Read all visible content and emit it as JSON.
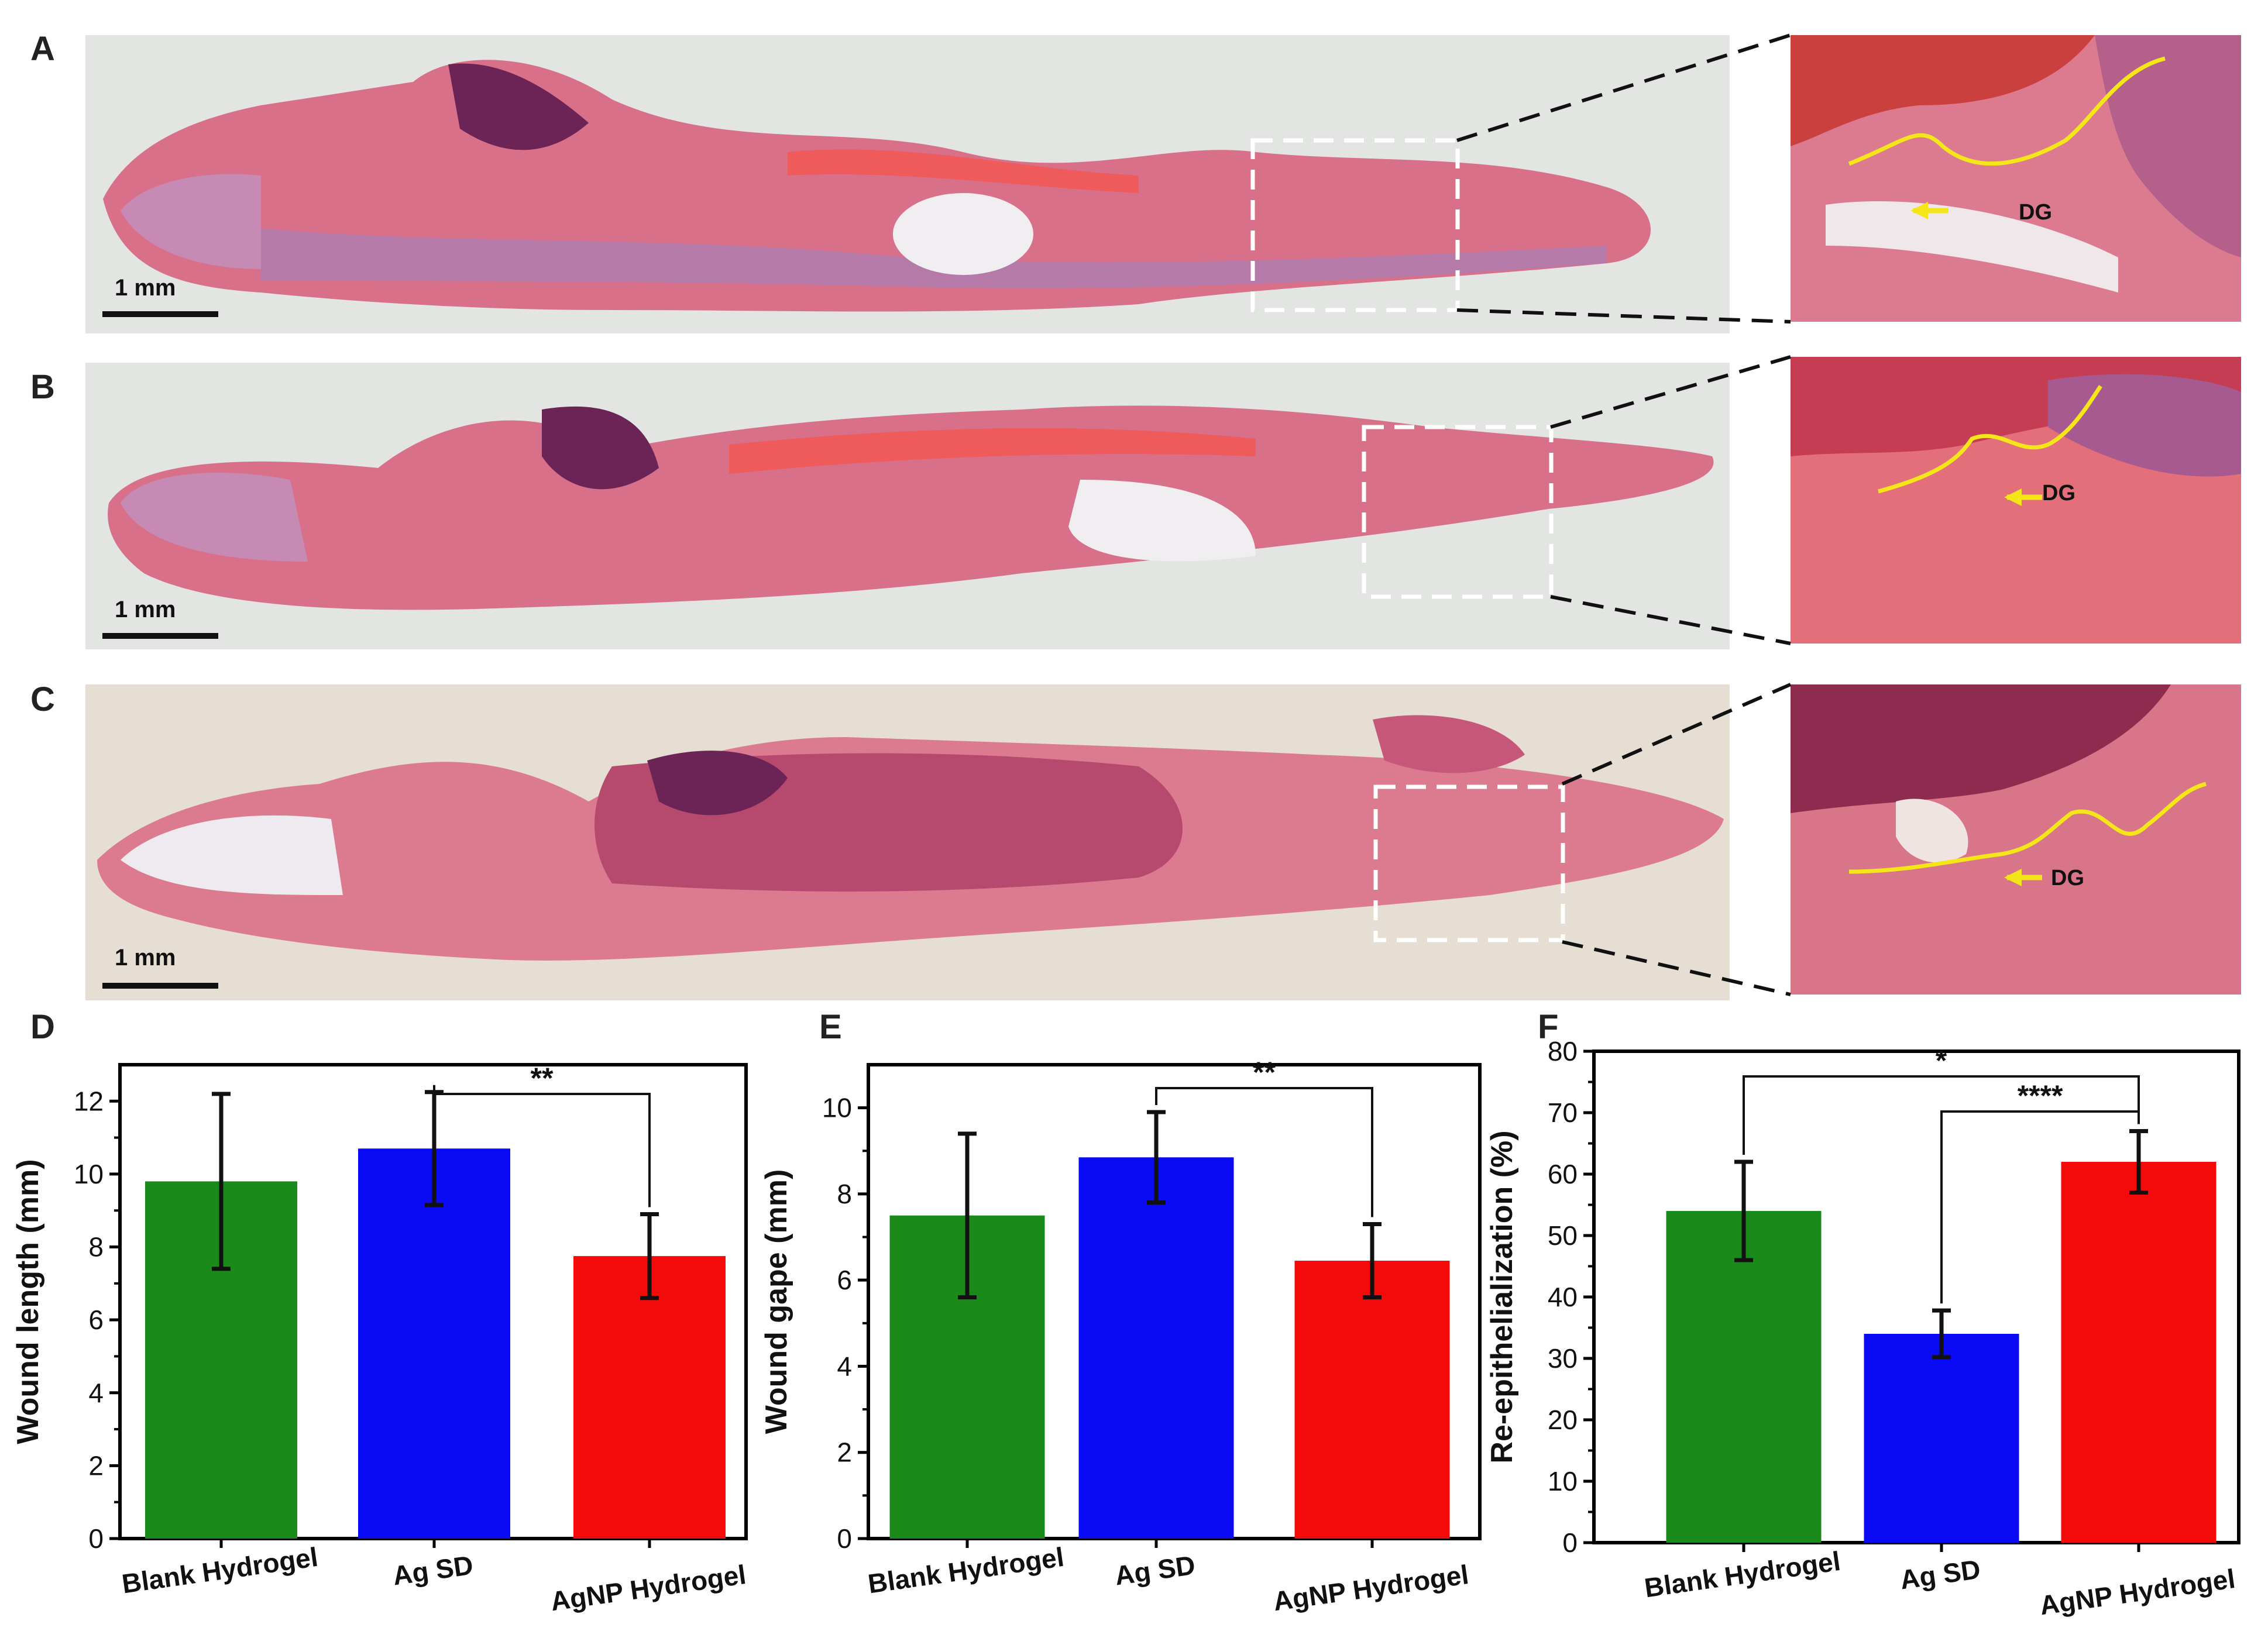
{
  "micrographs": [
    {
      "letter": "A",
      "scale_label": "1 mm",
      "annotation": "DG"
    },
    {
      "letter": "B",
      "scale_label": "1 mm",
      "annotation": "DG"
    },
    {
      "letter": "C",
      "scale_label": "1 mm",
      "annotation": "DG"
    }
  ],
  "colors": {
    "green": "#1a8a1a",
    "blue": "#0a0af5",
    "red": "#f50a0a",
    "tissue_pink": "#d9708a",
    "tissue_purple": "#8a3f7a",
    "annotation_yellow": "#f5e61a"
  },
  "chart_data": [
    {
      "panel": "D",
      "type": "bar",
      "categories": [
        "Blank Hydrogel",
        "Ag SD",
        "AgNP Hydrogel"
      ],
      "values": [
        9.8,
        10.7,
        7.75
      ],
      "errors": [
        2.4,
        1.55,
        1.15
      ],
      "ylabel": "Wound length (mm)",
      "ylim": [
        0,
        13
      ],
      "yticks": [
        "0",
        "2",
        "4",
        "6",
        "8",
        "10",
        "12"
      ],
      "significance": [
        {
          "from": 1,
          "to": 2,
          "label": "**"
        }
      ]
    },
    {
      "panel": "E",
      "type": "bar",
      "categories": [
        "Blank Hydrogel",
        "Ag SD",
        "AgNP Hydrogel"
      ],
      "values": [
        7.5,
        8.85,
        6.45
      ],
      "errors": [
        1.9,
        1.05,
        0.85
      ],
      "ylabel": "Wound gape (mm)",
      "ylim": [
        0,
        11
      ],
      "yticks": [
        "0",
        "2",
        "4",
        "6",
        "8",
        "10"
      ],
      "significance": [
        {
          "from": 1,
          "to": 2,
          "label": "**"
        }
      ]
    },
    {
      "panel": "F",
      "type": "bar",
      "categories": [
        "Blank Hydrogel",
        "Ag SD",
        "AgNP Hydrogel"
      ],
      "values": [
        54,
        34,
        62
      ],
      "errors": [
        8,
        3.8,
        5
      ],
      "ylabel": "Re-epithelialization (%)",
      "ylim": [
        0,
        80
      ],
      "yticks": [
        "0",
        "10",
        "20",
        "30",
        "40",
        "50",
        "60",
        "70",
        "80"
      ],
      "significance": [
        {
          "from": 0,
          "to": 2,
          "label": "*"
        },
        {
          "from": 1,
          "to": 2,
          "label": "****"
        }
      ]
    }
  ]
}
